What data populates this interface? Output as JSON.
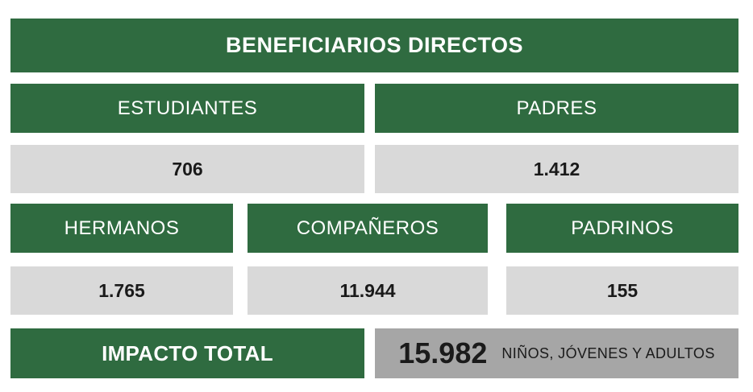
{
  "header": {
    "title": "BENEFICIARIOS DIRECTOS"
  },
  "row1": [
    {
      "label": "ESTUDIANTES",
      "value": "706"
    },
    {
      "label": "PADRES",
      "value": "1.412"
    }
  ],
  "row2": [
    {
      "label": "HERMANOS",
      "value": "1.765"
    },
    {
      "label": "COMPAÑEROS",
      "value": "11.944"
    },
    {
      "label": "PADRINOS",
      "value": "155"
    }
  ],
  "total": {
    "label": "IMPACTO TOTAL",
    "value": "15.982",
    "unit": "NIÑOS, JÓVENES Y ADULTOS"
  }
}
